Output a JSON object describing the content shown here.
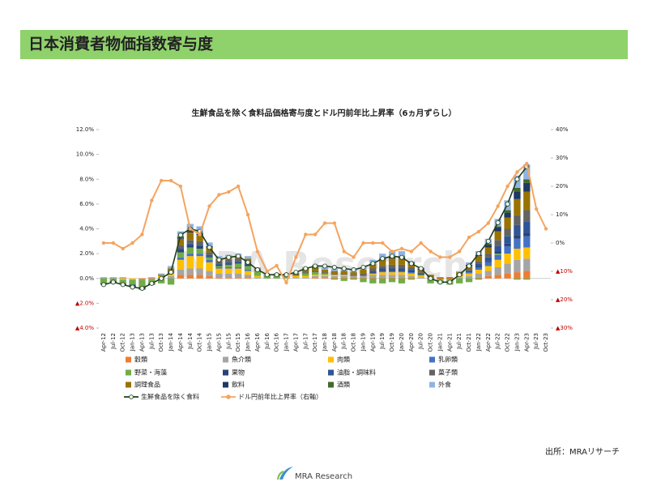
{
  "header": {
    "title": "日本消費者物価指数寄与度"
  },
  "chart_data": {
    "type": "bar",
    "title": "生鮮食品を除く食料品価格寄与度とドル円前年比上昇率（6ヵ月ずらし）",
    "watermark": "MRA Research",
    "categories": [
      "Apr-12",
      "Jul-12",
      "Oct-12",
      "Jan-13",
      "Apr-13",
      "Jul-13",
      "Oct-13",
      "Jan-14",
      "Apr-14",
      "Jul-14",
      "Oct-14",
      "Jan-15",
      "Apr-15",
      "Jul-15",
      "Oct-15",
      "Jan-16",
      "Apr-16",
      "Jul-16",
      "Oct-16",
      "Jan-17",
      "Apr-17",
      "Jul-17",
      "Oct-17",
      "Jan-18",
      "Apr-18",
      "Jul-18",
      "Oct-18",
      "Jan-19",
      "Apr-19",
      "Jul-19",
      "Oct-19",
      "Jan-20",
      "Apr-20",
      "Jul-20",
      "Oct-20",
      "Jan-21",
      "Apr-21",
      "Jul-21",
      "Oct-21",
      "Jan-22",
      "Apr-22",
      "Jul-22",
      "Oct-22",
      "Jan-23",
      "Apr-23",
      "Jul-23",
      "Oct-23"
    ],
    "ylim": [
      -4,
      12
    ],
    "yticks": [
      {
        "value": 12,
        "label": "12.0%"
      },
      {
        "value": 10,
        "label": "10.0%"
      },
      {
        "value": 8,
        "label": "8.0%"
      },
      {
        "value": 6,
        "label": "6.0%"
      },
      {
        "value": 4,
        "label": "4.0%"
      },
      {
        "value": 2,
        "label": "2.0%"
      },
      {
        "value": 0,
        "label": "0.0%"
      },
      {
        "value": -2,
        "label": "▲2.0%"
      },
      {
        "value": -4,
        "label": "▲4.0%"
      }
    ],
    "y2lim": [
      -30,
      40
    ],
    "y2ticks": [
      {
        "value": 40,
        "label": "40%"
      },
      {
        "value": 30,
        "label": "30%"
      },
      {
        "value": 20,
        "label": "20%"
      },
      {
        "value": 10,
        "label": "10%"
      },
      {
        "value": 0,
        "label": "0%"
      },
      {
        "value": -10,
        "label": "▲10%"
      },
      {
        "value": -20,
        "label": "▲20%"
      },
      {
        "value": -30,
        "label": "▲30%"
      }
    ],
    "series": [
      {
        "name": "穀類",
        "color": "#ed7d31",
        "values": [
          0,
          0,
          0,
          0,
          -0.1,
          -0.1,
          0,
          0,
          0.3,
          0.3,
          0.3,
          0.2,
          0.1,
          0.1,
          0.1,
          0.1,
          0,
          0,
          0,
          0,
          0,
          0,
          0.1,
          0.1,
          0.1,
          0.1,
          0.1,
          0.1,
          0.1,
          0.1,
          0.1,
          0.1,
          0.1,
          0,
          0,
          -0.1,
          -0.1,
          0,
          0,
          0.1,
          0.2,
          0.3,
          0.4,
          0.5,
          0.6,
          null,
          null
        ]
      },
      {
        "name": "魚介類",
        "color": "#a5a5a5",
        "values": [
          0.1,
          0.1,
          0.1,
          0,
          0,
          0.1,
          0.1,
          0.2,
          0.4,
          0.5,
          0.5,
          0.4,
          0.3,
          0.3,
          0.3,
          0.2,
          0.1,
          0,
          0,
          0,
          0.1,
          0.1,
          0.1,
          0.1,
          0.1,
          0.1,
          0.1,
          0.1,
          0.2,
          0.2,
          0.2,
          0.2,
          0.1,
          0.1,
          0,
          0,
          0,
          0.1,
          0.2,
          0.3,
          0.4,
          0.6,
          0.8,
          1.0,
          1.0,
          null,
          null
        ]
      },
      {
        "name": "肉類",
        "color": "#ffc000",
        "values": [
          0,
          0,
          -0.1,
          -0.1,
          0,
          0,
          0.1,
          0.2,
          0.8,
          1.0,
          1.0,
          0.7,
          0.4,
          0.4,
          0.4,
          0.3,
          0.1,
          0,
          0,
          0,
          0.1,
          0.1,
          0.1,
          0.1,
          0.1,
          0.1,
          0,
          0,
          0.1,
          0.2,
          0.2,
          0.2,
          0.2,
          0.1,
          0,
          0,
          0,
          0.1,
          0.2,
          0.3,
          0.4,
          0.6,
          0.8,
          0.9,
          0.9,
          null,
          null
        ]
      },
      {
        "name": "乳卵類",
        "color": "#4472c4",
        "values": [
          0,
          0,
          0,
          0,
          0,
          0,
          0,
          0.1,
          0.2,
          0.2,
          0.2,
          0.2,
          0.1,
          0.1,
          0.1,
          0.1,
          0,
          0,
          0,
          0,
          0,
          0,
          0,
          0,
          0,
          0,
          0,
          0,
          0,
          0.1,
          0.1,
          0.1,
          0.1,
          0,
          0,
          0,
          0,
          0,
          0.1,
          0.2,
          0.3,
          0.4,
          0.6,
          0.8,
          0.9,
          null,
          null
        ]
      },
      {
        "name": "野菜・海藻",
        "color": "#70ad47",
        "values": [
          -0.4,
          -0.2,
          -0.3,
          -0.4,
          -0.6,
          -0.3,
          -0.4,
          -0.5,
          0.4,
          0.5,
          0.4,
          0.2,
          0.1,
          0.2,
          0.3,
          0.3,
          0.4,
          0.3,
          0.4,
          0.3,
          0,
          0.2,
          0.2,
          0.1,
          -0.1,
          -0.2,
          -0.1,
          -0.3,
          -0.4,
          -0.4,
          -0.3,
          -0.4,
          -0.1,
          0.1,
          -0.4,
          -0.3,
          -0.4,
          -0.4,
          -0.3,
          -0.1,
          0,
          0.1,
          0,
          -0.1,
          -0.1,
          null,
          null
        ]
      },
      {
        "name": "果物",
        "color": "#264478",
        "values": [
          0,
          0,
          0,
          -0.1,
          -0.1,
          0,
          0,
          0,
          0.2,
          0.2,
          0.2,
          0.1,
          0.1,
          0.1,
          0.1,
          0.1,
          0,
          0,
          0,
          0,
          0,
          0,
          0,
          0,
          0,
          0,
          0,
          0,
          0.1,
          0.1,
          0.1,
          0.1,
          0.1,
          0.1,
          0,
          0,
          0,
          0,
          0,
          0.1,
          0.1,
          0.2,
          0.2,
          0.3,
          0.3,
          null,
          null
        ]
      },
      {
        "name": "油脂・調味料",
        "color": "#2f5597",
        "values": [
          0,
          0,
          0,
          0,
          0,
          0,
          0,
          0,
          0.1,
          0.1,
          0.1,
          0.1,
          0.1,
          0.1,
          0.1,
          0.1,
          0,
          0,
          0,
          0,
          0,
          0,
          0,
          0,
          0,
          0,
          0,
          0,
          0.1,
          0.1,
          0.1,
          0.1,
          0.1,
          0,
          0,
          0,
          0,
          0,
          0.1,
          0.2,
          0.3,
          0.4,
          0.6,
          0.8,
          0.9,
          null,
          null
        ]
      },
      {
        "name": "菓子類",
        "color": "#636363",
        "values": [
          0,
          0,
          0,
          0,
          0,
          0,
          0,
          0.1,
          0.3,
          0.3,
          0.3,
          0.2,
          0.2,
          0.2,
          0.2,
          0.2,
          0.1,
          0,
          0,
          0,
          0,
          0.1,
          0.1,
          0.1,
          0.1,
          0.1,
          0.1,
          0.2,
          0.2,
          0.2,
          0.3,
          0.3,
          0.2,
          0.1,
          0.1,
          0,
          0,
          0.1,
          0.1,
          0.2,
          0.3,
          0.5,
          0.6,
          0.8,
          0.9,
          null,
          null
        ]
      },
      {
        "name": "調理食品",
        "color": "#997300",
        "values": [
          0,
          0,
          0,
          0,
          0,
          0,
          0.1,
          0.2,
          0.5,
          0.6,
          0.5,
          0.4,
          0.2,
          0.2,
          0.2,
          0.2,
          0.1,
          0,
          0,
          0,
          0.1,
          0.2,
          0.2,
          0.2,
          0.2,
          0.2,
          0.2,
          0.3,
          0.4,
          0.5,
          0.5,
          0.5,
          0.3,
          0.2,
          0.2,
          0.1,
          0.1,
          0.2,
          0.3,
          0.4,
          0.5,
          0.7,
          0.9,
          1.3,
          1.5,
          null,
          null
        ]
      },
      {
        "name": "飲料",
        "color": "#1f3864",
        "values": [
          -0.1,
          -0.1,
          -0.1,
          -0.1,
          -0.1,
          -0.1,
          0,
          0,
          0.1,
          0.1,
          0.1,
          0.1,
          0,
          0,
          0,
          0,
          0,
          0,
          0,
          0,
          0,
          0,
          0,
          0,
          0,
          0,
          0,
          0,
          0,
          0.1,
          0.1,
          0.1,
          0.1,
          0.1,
          0,
          0,
          0,
          0,
          0.1,
          0.1,
          0.2,
          0.3,
          0.4,
          0.6,
          0.7,
          null,
          null
        ]
      },
      {
        "name": "酒類",
        "color": "#43682b",
        "values": [
          0,
          0,
          0,
          0,
          0,
          0,
          0,
          0,
          0.1,
          0.1,
          0.1,
          0,
          0,
          0,
          0,
          0,
          0,
          0,
          0,
          0,
          0.1,
          0.1,
          0.1,
          0,
          0,
          0,
          0,
          0,
          0,
          0,
          0.1,
          0.1,
          0,
          0,
          0,
          0,
          0,
          0,
          0,
          0,
          0.1,
          0.1,
          0.2,
          0.3,
          0.3,
          null,
          null
        ]
      },
      {
        "name": "外食",
        "color": "#8fb4e3",
        "values": [
          0,
          0,
          0,
          0,
          0,
          0,
          0.1,
          0.2,
          0.4,
          0.5,
          0.5,
          0.3,
          0.2,
          0.2,
          0.2,
          0.2,
          0.1,
          0.1,
          0,
          0.1,
          0.1,
          0.1,
          0.2,
          0.2,
          0.2,
          0.2,
          0.2,
          0.2,
          0.3,
          0.4,
          0.4,
          0.4,
          0.1,
          0.1,
          0,
          0,
          0,
          0.1,
          0.2,
          0.3,
          0.4,
          0.6,
          0.8,
          1.0,
          1.2,
          null,
          null
        ]
      },
      {
        "name": "生鮮食品を除く食料",
        "type": "line",
        "color": "#1e3d1e",
        "marker": "#eef5ee",
        "values": [
          -0.5,
          -0.3,
          -0.5,
          -0.7,
          -0.8,
          -0.4,
          0.0,
          0.5,
          3.5,
          4.0,
          3.8,
          2.5,
          1.5,
          1.7,
          1.8,
          1.3,
          0.7,
          0.3,
          0.3,
          0.3,
          0.5,
          0.8,
          1.0,
          1.0,
          0.9,
          0.8,
          0.7,
          0.9,
          1.2,
          1.6,
          1.8,
          1.7,
          1.2,
          0.8,
          0.0,
          -0.3,
          -0.3,
          0.3,
          1.0,
          2.0,
          3.0,
          4.5,
          6.0,
          8.0,
          9.0,
          null,
          null
        ]
      },
      {
        "name": "ドル円前年比上昇率（右軸）",
        "type": "line",
        "axis": "y2",
        "color": "#f4a460",
        "marker": "#f4a460",
        "values": [
          0,
          0,
          -2,
          0,
          3,
          15,
          22,
          22,
          20,
          5,
          3,
          13,
          17,
          18,
          20,
          10,
          -3,
          -10,
          -8,
          -14,
          -5,
          3,
          3,
          7,
          7,
          -3,
          -5,
          0,
          0,
          0,
          -3,
          -2,
          -3,
          0,
          -3,
          -5,
          -5,
          -3,
          2,
          4,
          7,
          13,
          20,
          25,
          28,
          12,
          5
        ]
      }
    ]
  },
  "footer": {
    "source": "出所：MRAリサーチ",
    "logo": "MRA Research"
  }
}
